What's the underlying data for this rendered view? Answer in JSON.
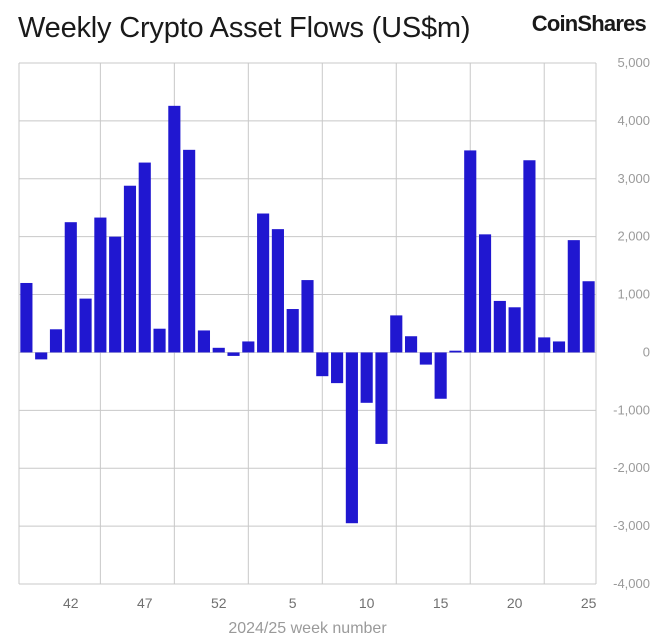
{
  "header": {
    "title": "Weekly Crypto Asset Flows (US$m)",
    "logo": "CoinShares"
  },
  "colors": {
    "bar": "#2017d0",
    "grid": "#c8c8c8",
    "zero_line": "#d8d8d8"
  },
  "chart_data": {
    "type": "bar",
    "title": "Weekly Crypto Asset Flows (US$m)",
    "xlabel": "2024/25 week number",
    "ylabel": "",
    "ylim": [
      -4000,
      5000
    ],
    "y_ticks": [
      "5,000",
      "4,000",
      "3,000",
      "2,000",
      "1,000",
      "0",
      "-1,000",
      "-2,000",
      "-3,000",
      "-4,000"
    ],
    "x_tick_labels": [
      "42",
      "47",
      "52",
      "5",
      "10",
      "15",
      "20",
      "25"
    ],
    "x_tick_positions": [
      3,
      8,
      13,
      18,
      23,
      28,
      33,
      38
    ],
    "grid": true,
    "y_axis_side": "right",
    "values": [
      1200,
      -120,
      400,
      2250,
      930,
      2330,
      2000,
      2880,
      3280,
      410,
      4260,
      3500,
      380,
      80,
      -60,
      190,
      2400,
      2130,
      750,
      1250,
      -410,
      -530,
      -2950,
      -870,
      -1580,
      640,
      280,
      -210,
      -800,
      30,
      3490,
      2040,
      890,
      780,
      3320,
      260,
      190,
      1940,
      1230
    ]
  }
}
